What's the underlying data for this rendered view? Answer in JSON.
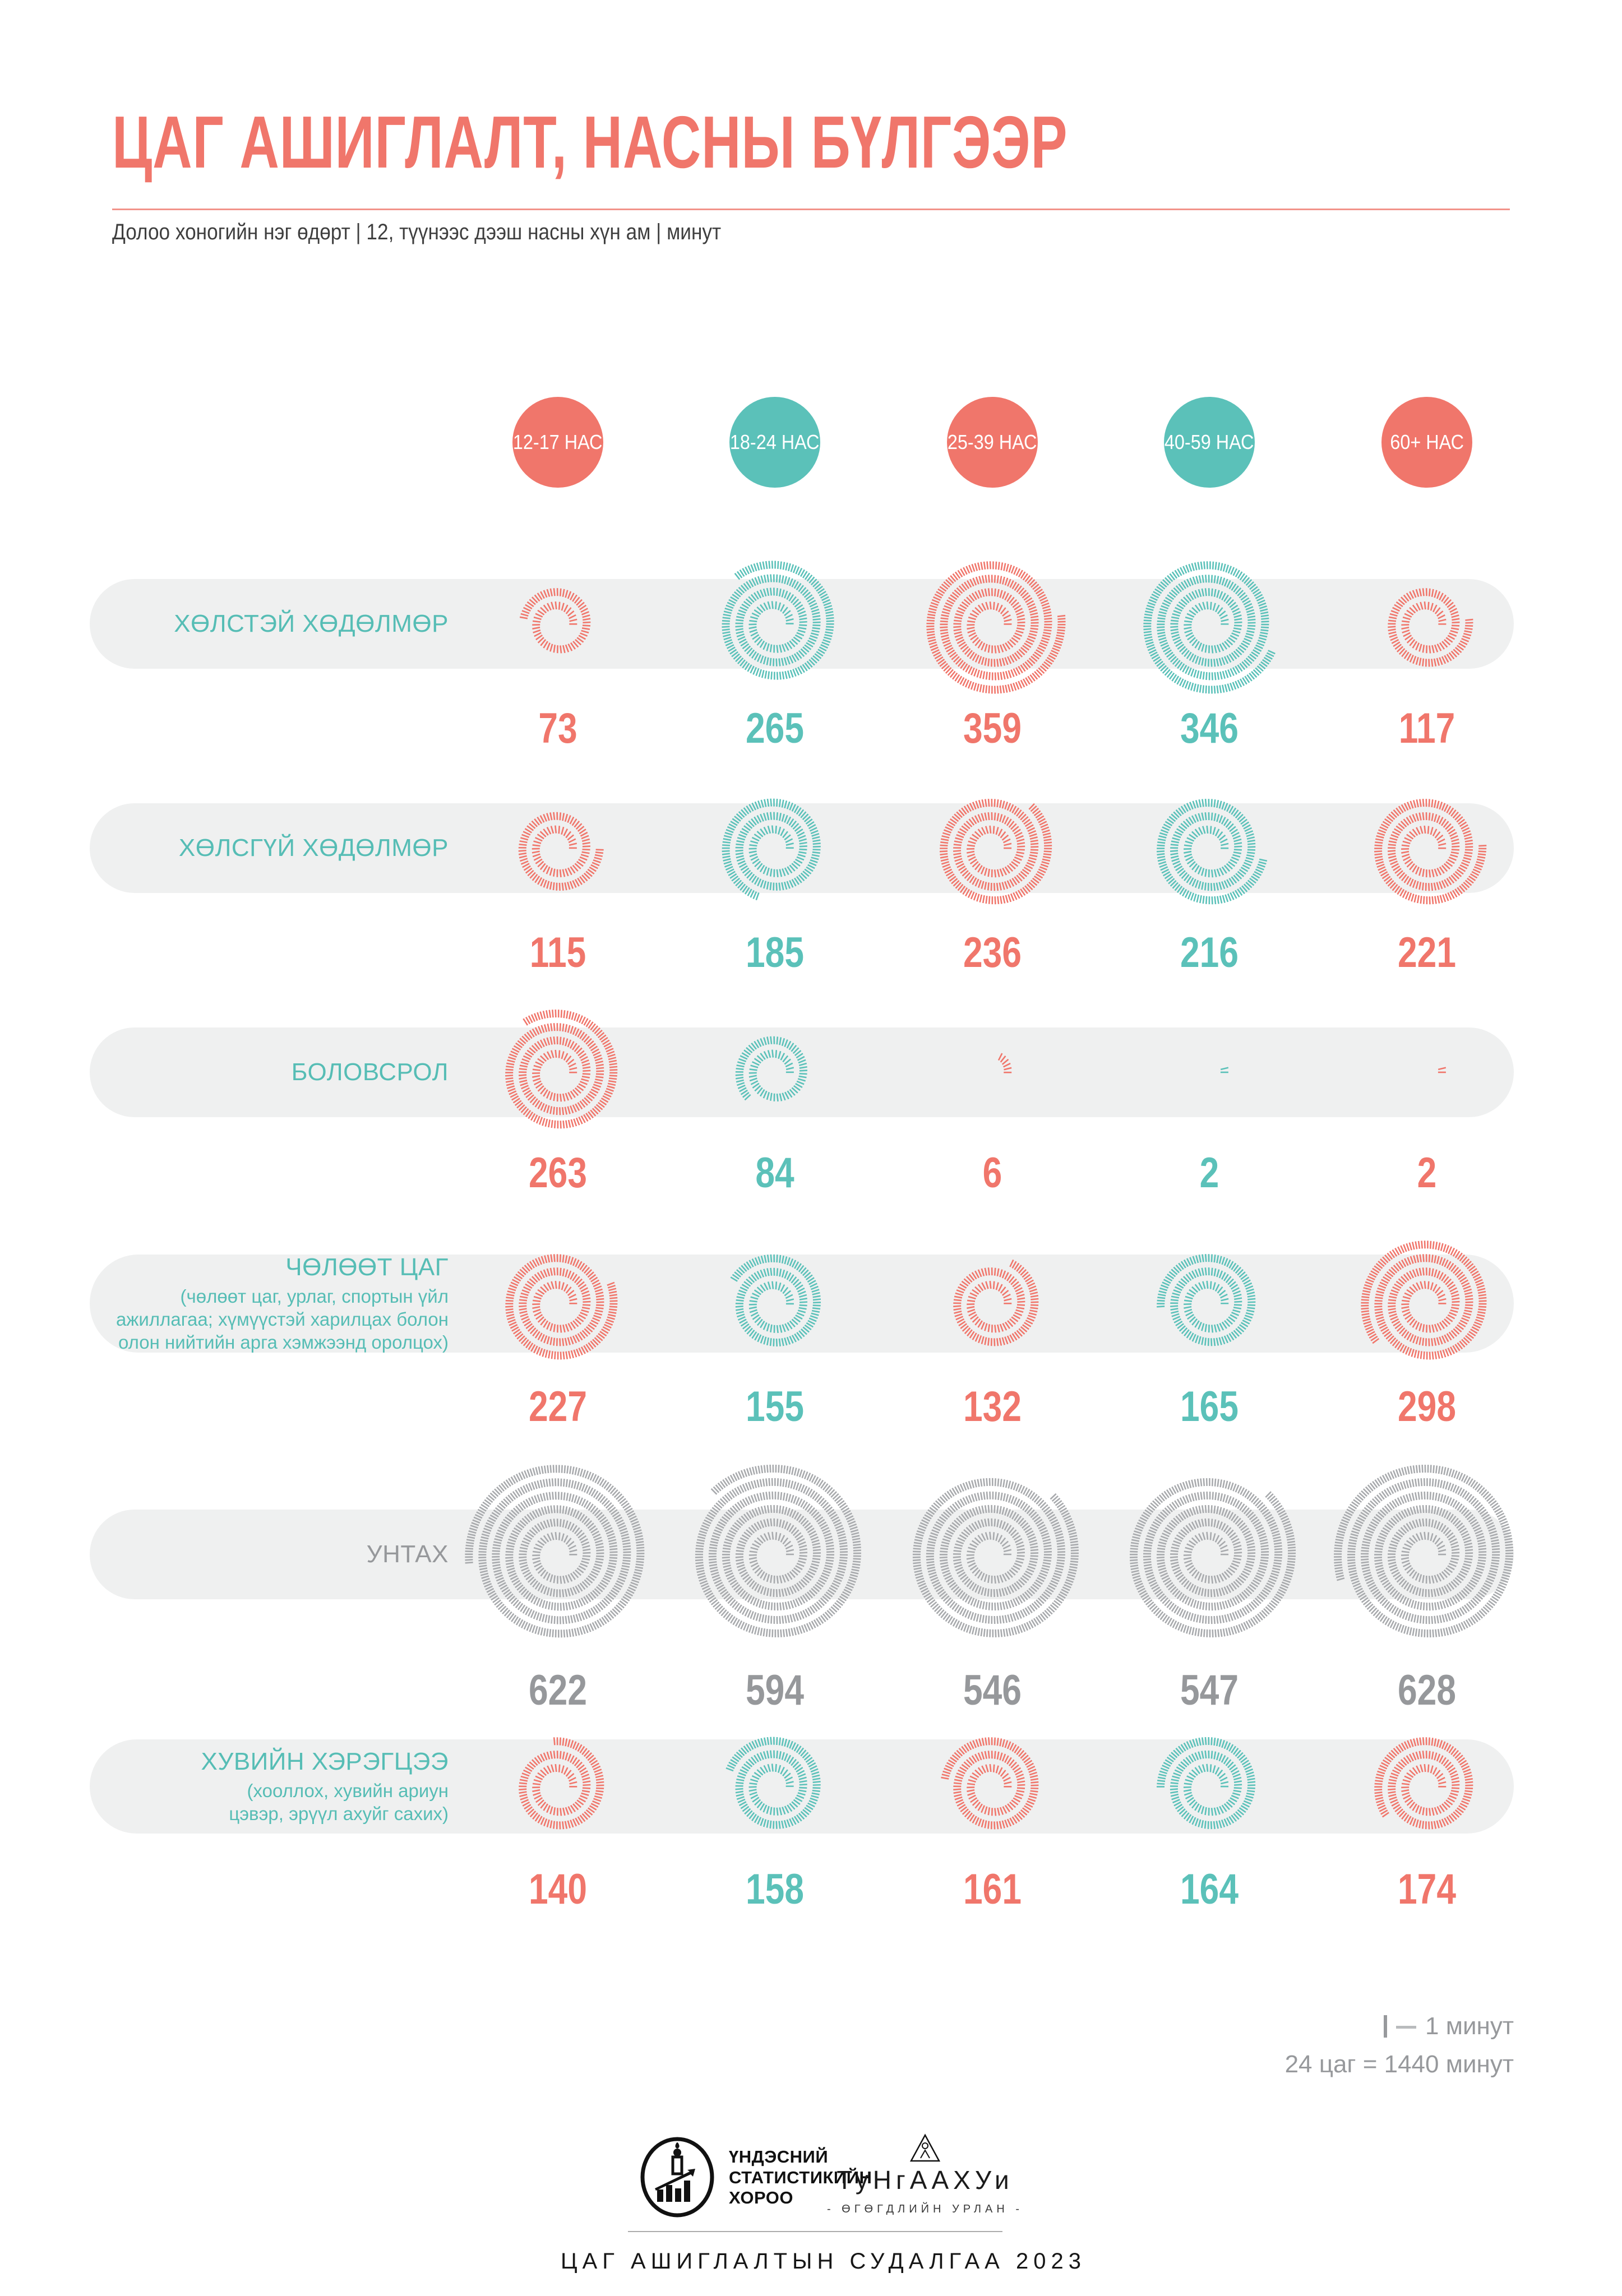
{
  "header": {
    "title": "ЦАГ АШИГЛАЛТ, НАСНЫ БҮЛГЭЭР",
    "subtitle": "Долоо хоногийн нэг өдөрт | 12, түүнээс дээш насны хүн ам | минут"
  },
  "palette": {
    "coral": "#F0766B",
    "teal": "#5BC1B9",
    "label_teal": "#56BDB5",
    "muted_text": "#96989B",
    "muted_spiral": "#A8AAAD",
    "band": "#EFF0F0",
    "subtitle_text": "#3F3F3F"
  },
  "chart_data": {
    "type": "spiral-ticks",
    "unit": "минут",
    "tick_value": 1,
    "total_note": "24 цаг = 1440 минут",
    "categories": [
      {
        "label": "12-17 НАС",
        "color": "coral"
      },
      {
        "label": "18-24 НАС",
        "color": "teal"
      },
      {
        "label": "25-39 НАС",
        "color": "coral"
      },
      {
        "label": "40-59 НАС",
        "color": "teal"
      },
      {
        "label": "60+ НАС",
        "color": "coral"
      }
    ],
    "series": [
      {
        "name": "ХӨЛСТЭЙ ХӨДӨЛМӨР",
        "values": [
          73,
          265,
          359,
          346,
          117
        ]
      },
      {
        "name": "ХӨЛСГҮЙ ХӨДӨЛМӨР",
        "values": [
          115,
          185,
          236,
          216,
          221
        ]
      },
      {
        "name": "БОЛОВСРОЛ",
        "values": [
          263,
          84,
          6,
          2,
          2
        ]
      },
      {
        "name": "ЧӨЛӨӨТ ЦАГ",
        "subtitle": "(чөлөөт цаг, урлаг, спортын үйл ажиллагаа; хүмүүстэй харилцах болон олон нийтийн арга хэмжээнд оролцох)",
        "values": [
          227,
          155,
          132,
          165,
          298
        ]
      },
      {
        "name": "УНТАХ",
        "values": [
          622,
          594,
          546,
          547,
          628
        ],
        "muted": true
      },
      {
        "name": "ХУВИЙН ХЭРЭГЦЭЭ",
        "subtitle": "(хооллох, хувийн ариун цэвэр, эрүүл ахуйг сахих)",
        "values": [
          140,
          158,
          161,
          164,
          174
        ]
      }
    ]
  },
  "legend": {
    "tick_label": "1 минут",
    "total_label": "24 цаг = 1440 минут"
  },
  "footer": {
    "nso_lines": [
      "ҮНДЭСНИЙ",
      "СТАТИСТИКИЙН",
      "ХОРОО"
    ],
    "partner_name": "ТуНгААХУи",
    "partner_tagline": "- ӨГӨГДЛИЙН УРЛАН -",
    "caption": "ЦАГ АШИГЛАЛТЫН СУДАЛГАА 2023"
  }
}
